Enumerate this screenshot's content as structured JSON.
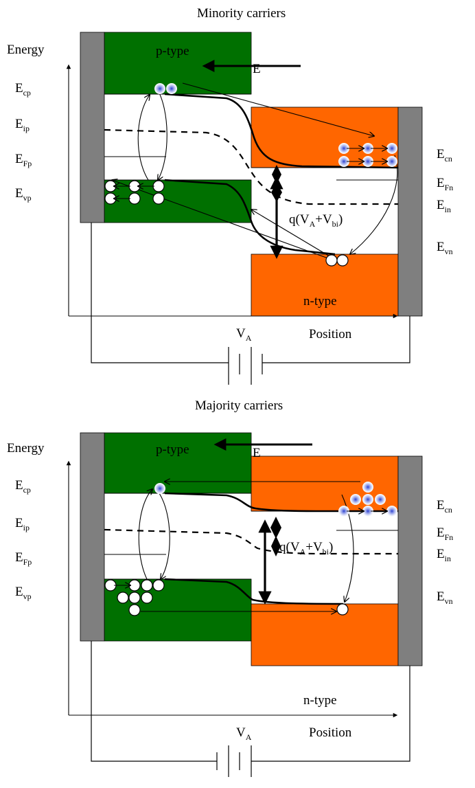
{
  "colors": {
    "p_region": "#007000",
    "n_region": "#ff6600",
    "contact": "#7f7f7f",
    "electron_core": "#3355dd"
  },
  "top_diagram": {
    "title": "Minority carriers",
    "energy_label": "Energy",
    "p_label": "p-type",
    "n_label": "n-type",
    "field_label": "E",
    "position_label": "Position",
    "voltage": {
      "main": "V",
      "sub": "A"
    },
    "left_levels": [
      {
        "main": "E",
        "sub": "cp"
      },
      {
        "main": "E",
        "sub": "ip"
      },
      {
        "main": "E",
        "sub": "Fp"
      },
      {
        "main": "E",
        "sub": "vp"
      }
    ],
    "right_levels": [
      {
        "main": "E",
        "sub": "cn"
      },
      {
        "main": "E",
        "sub": "Fn"
      },
      {
        "main": "E",
        "sub": "in"
      },
      {
        "main": "E",
        "sub": "vn"
      }
    ],
    "barrier": {
      "prefix": "q(V",
      "a": "A",
      "plus": "+V",
      "bi": "bi",
      "close": ")"
    }
  },
  "bottom_diagram": {
    "title": "Majority carriers",
    "energy_label": "Energy",
    "p_label": "p-type",
    "n_label": "n-type",
    "field_label": "E",
    "position_label": "Position",
    "voltage": {
      "main": "V",
      "sub": "A"
    },
    "left_levels": [
      {
        "main": "E",
        "sub": "cp"
      },
      {
        "main": "E",
        "sub": "ip"
      },
      {
        "main": "E",
        "sub": "Fp"
      },
      {
        "main": "E",
        "sub": "vp"
      }
    ],
    "right_levels": [
      {
        "main": "E",
        "sub": "cn"
      },
      {
        "main": "E",
        "sub": "Fn"
      },
      {
        "main": "E",
        "sub": "in"
      },
      {
        "main": "E",
        "sub": "vn"
      }
    ],
    "barrier": {
      "prefix": "q(V",
      "a": "A",
      "plus": "+V",
      "bi": "bi",
      "close": ")"
    }
  }
}
